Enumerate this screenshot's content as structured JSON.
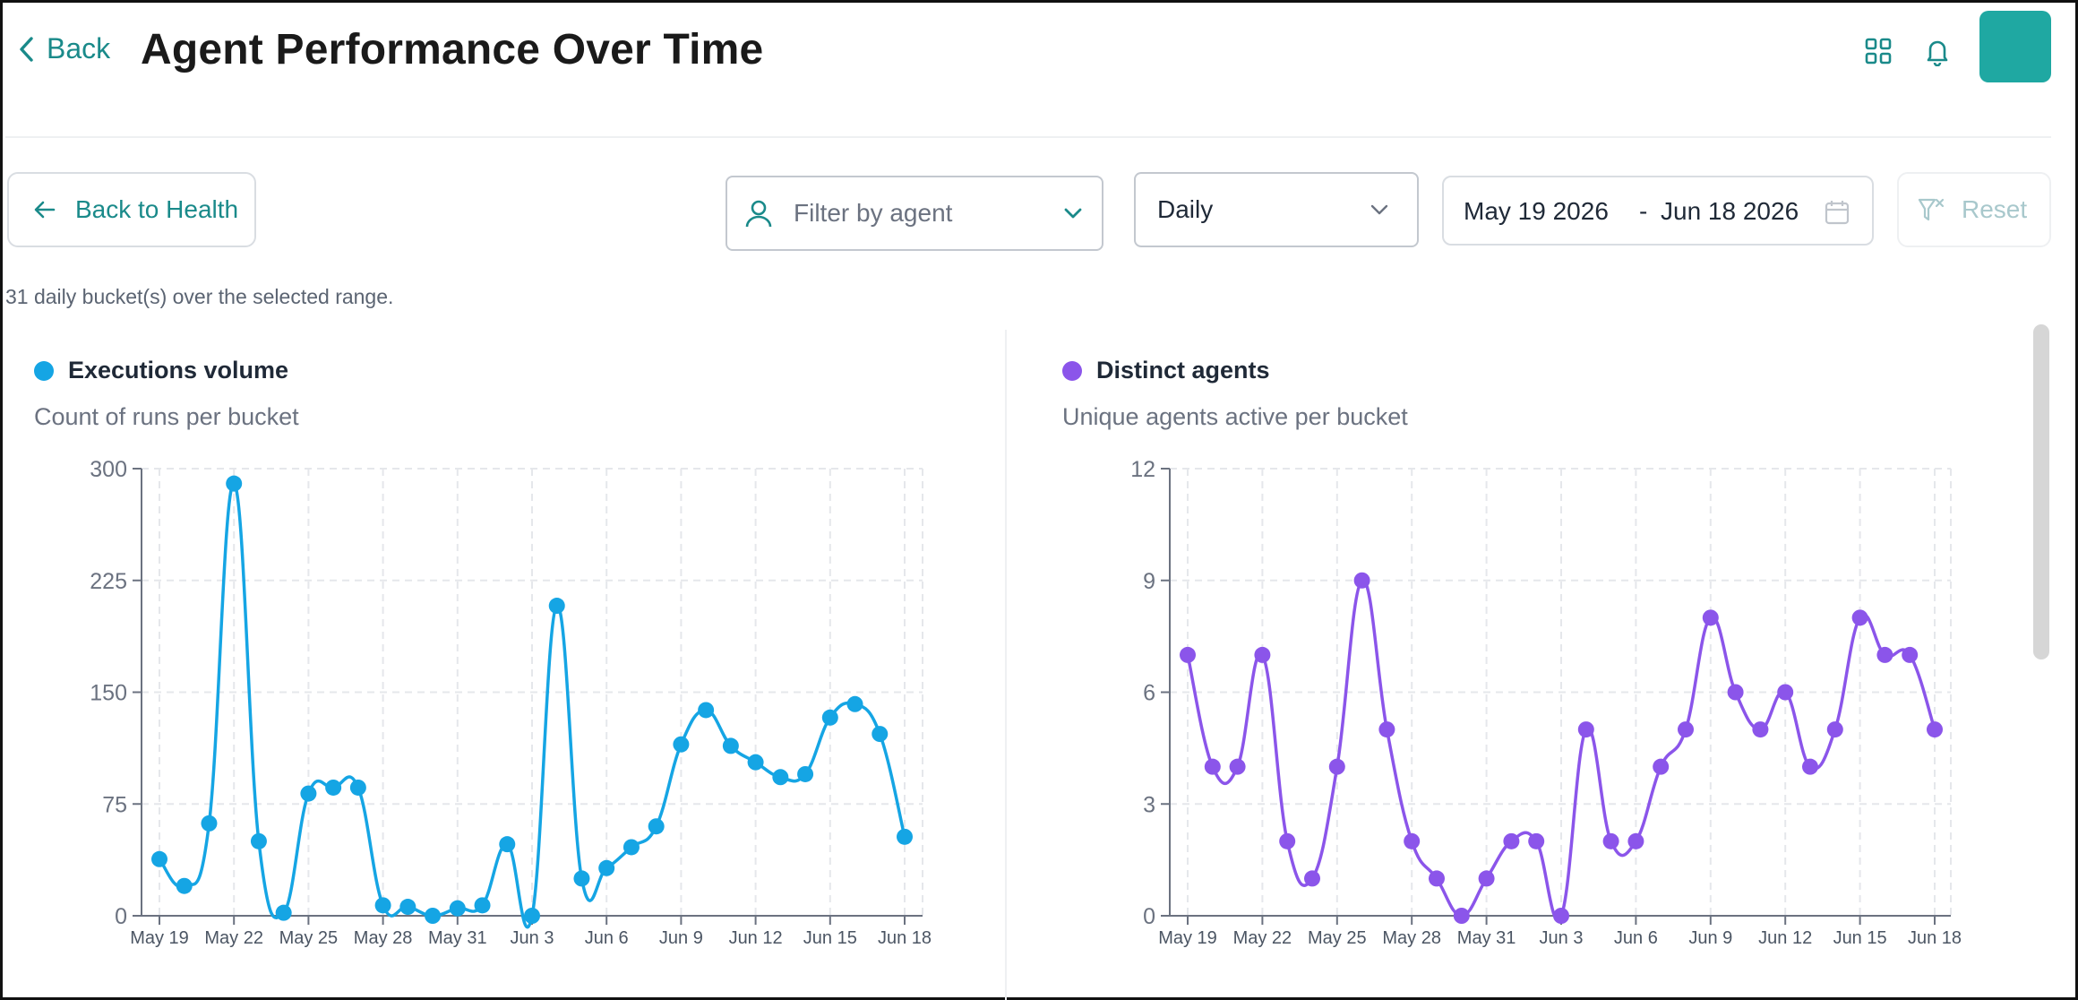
{
  "header": {
    "back_label": "Back",
    "title": "Agent Performance Over Time"
  },
  "toolbar": {
    "back_to_health_label": "Back to Health",
    "filter_placeholder": "Filter by agent",
    "granularity_value": "Daily",
    "date_start": "May 19 2026",
    "date_separator": "-",
    "date_end": "Jun 18 2026",
    "reset_label": "Reset"
  },
  "bucket_note": "31 daily bucket(s) over the selected range.",
  "colors": {
    "accent": "#1a8a8a",
    "executions_series": "#15a5e4",
    "agents_series": "#8b55ea"
  },
  "icons": {
    "back": "chevron-left-icon",
    "grid": "grid-icon",
    "bell": "bell-icon",
    "arrow": "arrow-left-icon",
    "person": "user-icon",
    "dropdown": "chevron-down-icon",
    "calendar": "calendar-icon",
    "reset": "filter-clear-icon"
  },
  "chart_data": [
    {
      "type": "line",
      "title": "Executions volume",
      "subtitle": "Count of runs per bucket",
      "categories": [
        "May 19",
        "May 20",
        "May 21",
        "May 22",
        "May 23",
        "May 24",
        "May 25",
        "May 26",
        "May 27",
        "May 28",
        "May 29",
        "May 30",
        "May 31",
        "Jun 1",
        "Jun 2",
        "Jun 3",
        "Jun 4",
        "Jun 5",
        "Jun 6",
        "Jun 7",
        "Jun 8",
        "Jun 9",
        "Jun 10",
        "Jun 11",
        "Jun 12",
        "Jun 13",
        "Jun 14",
        "Jun 15",
        "Jun 16",
        "Jun 17",
        "Jun 18"
      ],
      "x_tick_labels": [
        "May 19",
        "May 22",
        "May 25",
        "May 28",
        "May 31",
        "Jun 3",
        "Jun 6",
        "Jun 9",
        "Jun 12",
        "Jun 15",
        "Jun 18"
      ],
      "series": [
        {
          "values": [
            38,
            20,
            62,
            290,
            50,
            2,
            82,
            86,
            86,
            7,
            6,
            0,
            5,
            7,
            48,
            0,
            208,
            25,
            32,
            46,
            60,
            115,
            138,
            114,
            103,
            93,
            95,
            133,
            142,
            122,
            53
          ]
        }
      ],
      "ylim": [
        0,
        300
      ],
      "y_ticks": [
        "0",
        "75",
        "150",
        "225",
        "300"
      ],
      "grid": true
    },
    {
      "type": "line",
      "title": "Distinct agents",
      "subtitle": "Unique agents active per bucket",
      "categories": [
        "May 19",
        "May 20",
        "May 21",
        "May 22",
        "May 23",
        "May 24",
        "May 25",
        "May 26",
        "May 27",
        "May 28",
        "May 29",
        "May 30",
        "May 31",
        "Jun 1",
        "Jun 2",
        "Jun 3",
        "Jun 4",
        "Jun 5",
        "Jun 6",
        "Jun 7",
        "Jun 8",
        "Jun 9",
        "Jun 10",
        "Jun 11",
        "Jun 12",
        "Jun 13",
        "Jun 14",
        "Jun 15",
        "Jun 16",
        "Jun 17",
        "Jun 18"
      ],
      "x_tick_labels": [
        "May 19",
        "May 22",
        "May 25",
        "May 28",
        "May 31",
        "Jun 3",
        "Jun 6",
        "Jun 9",
        "Jun 12",
        "Jun 15",
        "Jun 18"
      ],
      "series": [
        {
          "values": [
            7,
            4,
            4,
            7,
            2,
            1,
            4,
            9,
            5,
            2,
            1,
            0,
            1,
            2,
            2,
            0,
            5,
            2,
            2,
            4,
            5,
            8,
            6,
            5,
            6,
            4,
            5,
            8,
            7,
            7,
            5
          ]
        }
      ],
      "ylim": [
        0,
        12
      ],
      "y_ticks": [
        "0",
        "3",
        "6",
        "9",
        "12"
      ],
      "grid": true
    }
  ]
}
